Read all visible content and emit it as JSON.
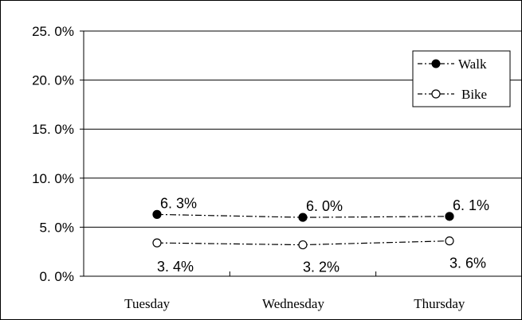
{
  "chart_data": {
    "type": "line",
    "title": "",
    "xlabel": "",
    "ylabel": "",
    "categories": [
      "Tuesday",
      "Wednesday",
      "Thursday"
    ],
    "yticks": [
      "0. 0%",
      "5. 0%",
      "10. 0%",
      "15. 0%",
      "20. 0%",
      "25. 0%"
    ],
    "ylim": [
      0,
      25
    ],
    "grid": true,
    "legend_position": "top-right",
    "series": [
      {
        "name": "Walk",
        "values": [
          6.3,
          6.0,
          6.1
        ],
        "labels": [
          "6. 3%",
          "6. 0%",
          "6. 1%"
        ],
        "marker": "filled-circle",
        "line_style": "dash-dot",
        "color": "#000000"
      },
      {
        "name": "Bike",
        "values": [
          3.4,
          3.2,
          3.6
        ],
        "labels": [
          "3. 4%",
          "3. 2%",
          "3. 6%"
        ],
        "marker": "open-circle",
        "line_style": "dash-dot",
        "color": "#000000"
      }
    ]
  }
}
